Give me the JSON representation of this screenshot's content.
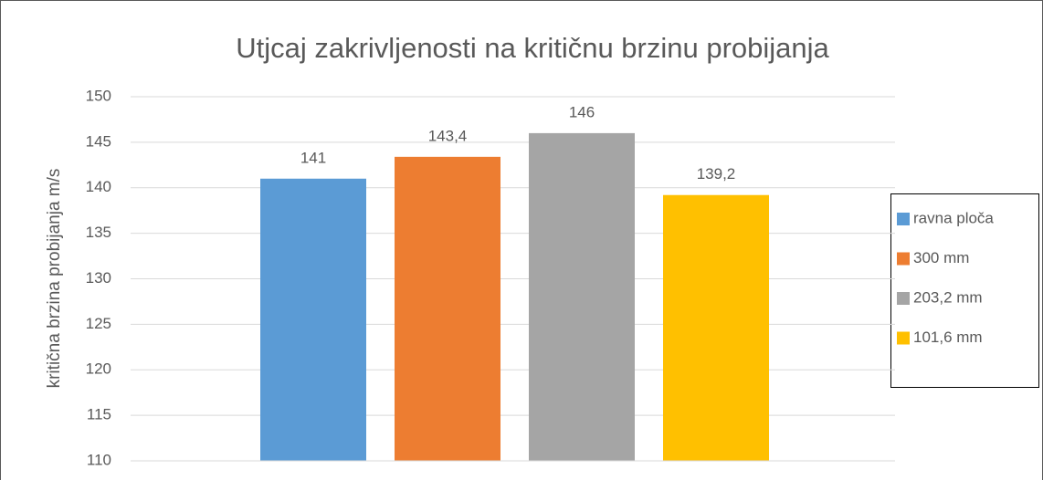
{
  "chart_data": {
    "type": "bar",
    "title": "Utjcaj zakrivljenosti na kritičnu brzinu probijanja",
    "y_label": "kritična brzina probijanja m/s",
    "categories": [
      null
    ],
    "series": [
      {
        "name": "ravna ploča",
        "color": "#5b9bd5",
        "values": [
          141
        ],
        "value_labels": [
          "141"
        ]
      },
      {
        "name": "300 mm",
        "color": "#ed7d31",
        "values": [
          143.4
        ],
        "value_labels": [
          "143,4"
        ]
      },
      {
        "name": "203,2 mm",
        "color": "#a5a5a5",
        "values": [
          146
        ],
        "value_labels": [
          "146"
        ]
      },
      {
        "name": "101,6 mm",
        "color": "#ffc000",
        "values": [
          139.2
        ],
        "value_labels": [
          "139,2"
        ]
      }
    ],
    "ylim": [
      110,
      150
    ],
    "yticks": [
      110,
      115,
      120,
      125,
      130,
      135,
      140,
      145,
      150
    ],
    "grid": true,
    "legend": "right"
  }
}
